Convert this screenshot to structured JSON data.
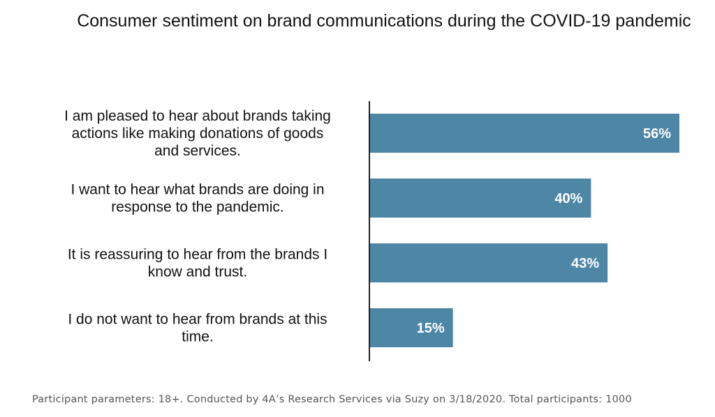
{
  "chart_data": {
    "type": "bar",
    "orientation": "horizontal",
    "title": "Consumer sentiment on brand communications during the COVID-19 pandemic",
    "categories": [
      "I am pleased to hear about brands taking actions like making donations of goods and services.",
      "I want to hear what brands are doing in response to the pandemic.",
      "It is reassuring to hear from the brands I know and trust.",
      "I do not want to hear from brands at this time."
    ],
    "category_lines": [
      [
        "I am pleased to hear about brands taking",
        "actions like making donations of goods",
        "and services."
      ],
      [
        "I want to hear what brands are doing in",
        "response to the pandemic."
      ],
      [
        "It is reassuring to hear from the brands I",
        "know and trust."
      ],
      [
        "I do not want to hear from brands at this",
        "time."
      ]
    ],
    "values": [
      56,
      40,
      43,
      15
    ],
    "value_labels": [
      "56%",
      "40%",
      "43%",
      "15%"
    ],
    "unit": "%",
    "xlim": [
      0,
      56
    ],
    "grid": false,
    "legend": "none",
    "bar_color": "#4e86a6",
    "label_color": "#ffffff"
  },
  "footnote": "Participant parameters: 18+. Conducted by 4A’s Research Services via Suzy on 3/18/2020. Total participants: 1000"
}
